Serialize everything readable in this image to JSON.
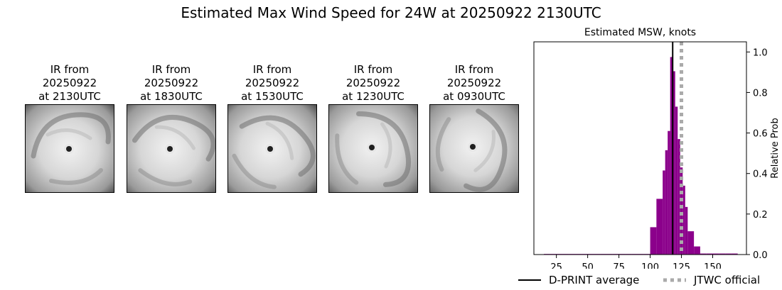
{
  "title": "Estimated Max Wind Speed for 24W at 20250922 2130UTC",
  "ir_panels": [
    {
      "line1": "IR from",
      "line2": "20250922",
      "line3": "at 2130UTC"
    },
    {
      "line1": "IR from",
      "line2": "20250922",
      "line3": "at 1830UTC"
    },
    {
      "line1": "IR from",
      "line2": "20250922",
      "line3": "at 1530UTC"
    },
    {
      "line1": "IR from",
      "line2": "20250922",
      "line3": "at 1230UTC"
    },
    {
      "line1": "IR from",
      "line2": "20250922",
      "line3": "at 0930UTC"
    }
  ],
  "chart_data": {
    "type": "bar",
    "title": "Estimated MSW, knots",
    "xlabel": "",
    "ylabel": "Relative Prob",
    "xlim": [
      7,
      177
    ],
    "ylim": [
      0,
      1.05
    ],
    "xticks": [
      25,
      50,
      75,
      100,
      125,
      150
    ],
    "yticks": [
      0.0,
      0.2,
      0.4,
      0.6,
      0.8,
      1.0
    ],
    "bin_width": 5,
    "bins": [
      {
        "x0": 15,
        "value": 0.003
      },
      {
        "x0": 20,
        "value": 0.003
      },
      {
        "x0": 25,
        "value": 0.003
      },
      {
        "x0": 30,
        "value": 0.003
      },
      {
        "x0": 35,
        "value": 0.003
      },
      {
        "x0": 40,
        "value": 0.003
      },
      {
        "x0": 45,
        "value": 0.003
      },
      {
        "x0": 50,
        "value": 0.003
      },
      {
        "x0": 55,
        "value": 0.003
      },
      {
        "x0": 60,
        "value": 0.003
      },
      {
        "x0": 65,
        "value": 0.003
      },
      {
        "x0": 70,
        "value": 0.003
      },
      {
        "x0": 75,
        "value": 0.003
      },
      {
        "x0": 80,
        "value": 0.003
      },
      {
        "x0": 85,
        "value": 0.003
      },
      {
        "x0": 90,
        "value": 0.003
      },
      {
        "x0": 95,
        "value": 0.003
      },
      {
        "x0": 100,
        "value": 0.135
      },
      {
        "x0": 105,
        "value": 0.275
      },
      {
        "x0": 110,
        "value": 0.415
      },
      {
        "x0": 112,
        "value": 0.515
      },
      {
        "x0": 114,
        "value": 0.61
      },
      {
        "x0": 116,
        "value": 0.975
      },
      {
        "x0": 118,
        "value": 0.905
      },
      {
        "x0": 120,
        "value": 0.73
      },
      {
        "x0": 122,
        "value": 0.57
      },
      {
        "x0": 124,
        "value": 0.43
      },
      {
        "x0": 126,
        "value": 0.34
      },
      {
        "x0": 128,
        "value": 0.235
      },
      {
        "x0": 130,
        "value": 0.115
      },
      {
        "x0": 135,
        "value": 0.04
      },
      {
        "x0": 140,
        "value": 0.005
      },
      {
        "x0": 145,
        "value": 0.005
      },
      {
        "x0": 150,
        "value": 0.005
      },
      {
        "x0": 155,
        "value": 0.005
      },
      {
        "x0": 160,
        "value": 0.005
      },
      {
        "x0": 165,
        "value": 0.005
      }
    ],
    "bin_widths_note": "",
    "lines": [
      {
        "name": "D-PRINT average",
        "x": 118,
        "color": "#000000",
        "style": "solid"
      },
      {
        "name": "JTWC official",
        "x": 125,
        "color": "#aaaaaa",
        "style": "dotted"
      }
    ],
    "bar_color": "#8b008b",
    "legend_position": "bottom-right"
  }
}
